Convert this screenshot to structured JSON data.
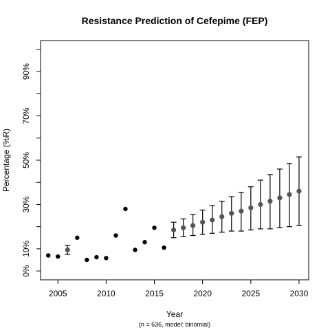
{
  "chart_data": {
    "type": "scatter",
    "title": "Resistance Prediction of Cefepime (FEP)",
    "xlabel": "Year",
    "ylabel": "Percentage (%R)",
    "subtitle": "(n = 636, model: binomial)",
    "xlim": [
      2003.2,
      2031.0
    ],
    "ylim": [
      -4,
      104
    ],
    "x_ticks": [
      "2005",
      "2010",
      "2015",
      "2020",
      "2025",
      "2030"
    ],
    "x_tick_values": [
      2005,
      2010,
      2015,
      2020,
      2025,
      2030
    ],
    "y_ticks": [
      "0%",
      "10%",
      "30%",
      "50%",
      "70%",
      "90%"
    ],
    "y_tick_values": [
      0,
      10,
      30,
      50,
      70,
      90
    ],
    "y_minor_ticks": [
      20,
      40,
      60,
      80,
      100
    ],
    "grid": false,
    "colors": {
      "observed": "#000000",
      "predicted": "#555555",
      "errorbar": "#000000"
    },
    "observed": [
      {
        "x": 2004,
        "y": 7.0
      },
      {
        "x": 2005,
        "y": 6.5
      },
      {
        "x": 2007,
        "y": 15.0
      },
      {
        "x": 2008,
        "y": 5.0
      },
      {
        "x": 2009,
        "y": 6.2
      },
      {
        "x": 2010,
        "y": 5.8
      },
      {
        "x": 2011,
        "y": 16.0
      },
      {
        "x": 2012,
        "y": 28.0
      },
      {
        "x": 2013,
        "y": 9.5
      },
      {
        "x": 2014,
        "y": 13.0
      },
      {
        "x": 2015,
        "y": 19.5
      },
      {
        "x": 2016,
        "y": 10.5
      }
    ],
    "observed_with_error": [
      {
        "x": 2006,
        "y": 9.5,
        "low": 7.5,
        "high": 11.5
      }
    ],
    "predicted": [
      {
        "x": 2017,
        "y": 18.5,
        "low": 15.0,
        "high": 22.0
      },
      {
        "x": 2018,
        "y": 19.5,
        "low": 15.5,
        "high": 23.5
      },
      {
        "x": 2019,
        "y": 20.5,
        "low": 16.0,
        "high": 25.5
      },
      {
        "x": 2020,
        "y": 22.0,
        "low": 16.5,
        "high": 27.5
      },
      {
        "x": 2021,
        "y": 23.0,
        "low": 17.0,
        "high": 29.5
      },
      {
        "x": 2022,
        "y": 24.5,
        "low": 17.5,
        "high": 31.5
      },
      {
        "x": 2023,
        "y": 26.0,
        "low": 18.0,
        "high": 33.5
      },
      {
        "x": 2024,
        "y": 27.0,
        "low": 18.0,
        "high": 35.5
      },
      {
        "x": 2025,
        "y": 28.5,
        "low": 18.5,
        "high": 38.0
      },
      {
        "x": 2026,
        "y": 30.0,
        "low": 19.0,
        "high": 41.0
      },
      {
        "x": 2027,
        "y": 31.5,
        "low": 19.0,
        "high": 43.5
      },
      {
        "x": 2028,
        "y": 33.0,
        "low": 19.5,
        "high": 46.0
      },
      {
        "x": 2029,
        "y": 34.5,
        "low": 20.0,
        "high": 48.5
      },
      {
        "x": 2030,
        "y": 36.0,
        "low": 20.5,
        "high": 51.5
      }
    ]
  }
}
